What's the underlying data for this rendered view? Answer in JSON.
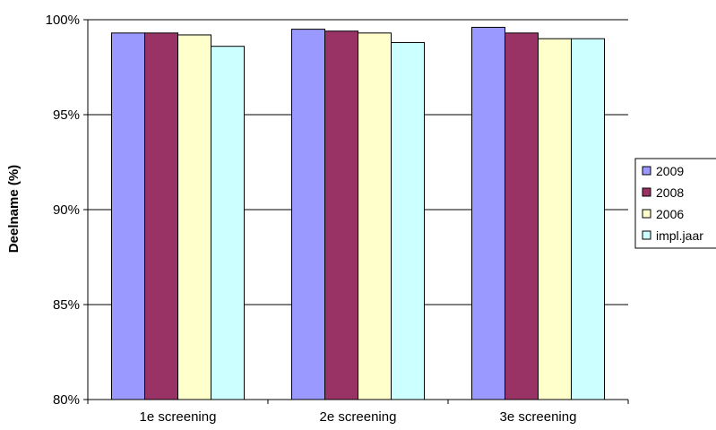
{
  "chart_data": {
    "type": "bar",
    "title": "",
    "xlabel": "",
    "ylabel": "Deelname (%)",
    "categories": [
      "1e screening",
      "2e screening",
      "3e screening"
    ],
    "series": [
      {
        "name": "2009",
        "color": "#9999FF",
        "values": [
          99.3,
          99.5,
          99.6
        ]
      },
      {
        "name": "2008",
        "color": "#993366",
        "values": [
          99.3,
          99.4,
          99.3
        ]
      },
      {
        "name": "2006",
        "color": "#FFFFCC",
        "values": [
          99.2,
          99.3,
          99.0
        ]
      },
      {
        "name": "impl.jaar",
        "color": "#CCFFFF",
        "values": [
          98.6,
          98.8,
          99.0
        ]
      }
    ],
    "ylim": [
      80,
      100
    ],
    "yticks": [
      {
        "value": 80,
        "label": "80%"
      },
      {
        "value": 85,
        "label": "85%"
      },
      {
        "value": 90,
        "label": "90%"
      },
      {
        "value": 95,
        "label": "95%"
      },
      {
        "value": 100,
        "label": "100%"
      }
    ],
    "grid": true,
    "legend_position": "right"
  }
}
